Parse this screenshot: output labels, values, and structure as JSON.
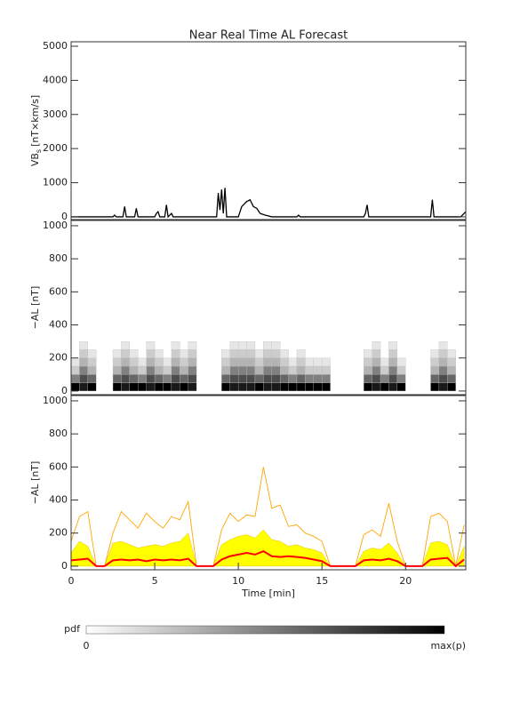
{
  "chart_data": [
    {
      "type": "line",
      "title": "Near Real Time AL Forecast",
      "ylabel": "VB",
      "ylabel_sub": "s",
      "ylabel_unit": "[nT×km/s]",
      "xlim": [
        0,
        23.6
      ],
      "ylim": [
        -80,
        5130
      ],
      "yticks": [
        0,
        1000,
        2000,
        3000,
        4000,
        5000
      ],
      "series": [
        {
          "color": "#000000",
          "x": [
            0,
            2.5,
            2.6,
            2.7,
            3.1,
            3.2,
            3.3,
            3.8,
            3.9,
            4.0,
            5.0,
            5.1,
            5.2,
            5.3,
            5.6,
            5.7,
            5.8,
            6.0,
            6.1,
            6.2,
            8.7,
            8.8,
            8.9,
            9.0,
            9.1,
            9.2,
            9.3,
            10.0,
            10.2,
            10.5,
            10.7,
            10.9,
            11.1,
            11.3,
            11.6,
            12.0,
            13.5,
            13.6,
            13.7,
            17.5,
            17.6,
            17.7,
            17.8,
            21.5,
            21.6,
            21.7,
            23.3,
            23.5,
            23.6
          ],
          "values": [
            0,
            0,
            50,
            0,
            0,
            300,
            0,
            0,
            250,
            0,
            0,
            100,
            150,
            0,
            0,
            350,
            0,
            100,
            0,
            0,
            0,
            700,
            200,
            800,
            100,
            850,
            0,
            0,
            300,
            450,
            500,
            300,
            250,
            100,
            50,
            0,
            0,
            50,
            0,
            0,
            100,
            350,
            0,
            0,
            500,
            0,
            0,
            100,
            150
          ]
        }
      ]
    },
    {
      "type": "heatmap",
      "ylabel": "−AL [nT]",
      "xlim": [
        0,
        23.6
      ],
      "ylim": [
        -22,
        1032
      ],
      "yticks": [
        0,
        200,
        400,
        600,
        800,
        1000
      ],
      "xbins": [
        0,
        0.5,
        1,
        1.5,
        2,
        2.5,
        3,
        3.5,
        4,
        4.5,
        5,
        5.5,
        6,
        6.5,
        7,
        7.5,
        8,
        8.5,
        9,
        9.5,
        10,
        10.5,
        11,
        11.5,
        12,
        12.5,
        13,
        13.5,
        14,
        14.5,
        15,
        15.5,
        16,
        16.5,
        17,
        17.5,
        18,
        18.5,
        19,
        19.5,
        20,
        20.5,
        21,
        21.5,
        22,
        22.5,
        23,
        23.5
      ],
      "ybins": [
        0,
        50,
        100,
        150,
        200,
        250,
        300
      ],
      "pdf": [
        [
          1,
          0.5,
          0.2,
          0.1,
          0,
          0
        ],
        [
          0.9,
          0.7,
          0.5,
          0.3,
          0.2,
          0.1
        ],
        [
          1,
          0.6,
          0.3,
          0.2,
          0.1,
          0
        ],
        [
          0,
          0,
          0,
          0,
          0,
          0
        ],
        [
          0,
          0,
          0,
          0,
          0,
          0
        ],
        [
          1,
          0.6,
          0.3,
          0.2,
          0.1,
          0
        ],
        [
          0.9,
          0.7,
          0.5,
          0.3,
          0.2,
          0.1
        ],
        [
          1,
          0.6,
          0.3,
          0.2,
          0.1,
          0
        ],
        [
          1,
          0.5,
          0.2,
          0.1,
          0,
          0
        ],
        [
          0.9,
          0.7,
          0.5,
          0.3,
          0.2,
          0.1
        ],
        [
          1,
          0.6,
          0.3,
          0.2,
          0.1,
          0
        ],
        [
          1,
          0.5,
          0.2,
          0.1,
          0,
          0
        ],
        [
          0.9,
          0.7,
          0.5,
          0.3,
          0.2,
          0.1
        ],
        [
          1,
          0.6,
          0.3,
          0.2,
          0.1,
          0
        ],
        [
          0.9,
          0.7,
          0.5,
          0.3,
          0.2,
          0.1
        ],
        [
          0,
          0,
          0,
          0,
          0,
          0
        ],
        [
          0,
          0,
          0,
          0,
          0,
          0
        ],
        [
          0,
          0,
          0,
          0,
          0,
          0
        ],
        [
          1,
          0.6,
          0.3,
          0.2,
          0.1,
          0
        ],
        [
          0.9,
          0.7,
          0.5,
          0.3,
          0.2,
          0.1
        ],
        [
          0.9,
          0.7,
          0.5,
          0.3,
          0.2,
          0.1
        ],
        [
          0.9,
          0.7,
          0.5,
          0.3,
          0.2,
          0.1
        ],
        [
          1,
          0.6,
          0.3,
          0.2,
          0.1,
          0
        ],
        [
          0.9,
          0.7,
          0.5,
          0.3,
          0.2,
          0.1
        ],
        [
          0.9,
          0.7,
          0.5,
          0.3,
          0.2,
          0.1
        ],
        [
          1,
          0.6,
          0.3,
          0.2,
          0.1,
          0
        ],
        [
          1,
          0.5,
          0.2,
          0.1,
          0,
          0
        ],
        [
          1,
          0.6,
          0.3,
          0.2,
          0.1,
          0
        ],
        [
          1,
          0.5,
          0.2,
          0.1,
          0,
          0
        ],
        [
          1,
          0.5,
          0.2,
          0.1,
          0,
          0
        ],
        [
          1,
          0.5,
          0.2,
          0.1,
          0,
          0
        ],
        [
          0,
          0,
          0,
          0,
          0,
          0
        ],
        [
          0,
          0,
          0,
          0,
          0,
          0
        ],
        [
          0,
          0,
          0,
          0,
          0,
          0
        ],
        [
          0,
          0,
          0,
          0,
          0,
          0
        ],
        [
          1,
          0.6,
          0.3,
          0.2,
          0.1,
          0
        ],
        [
          0.9,
          0.7,
          0.5,
          0.3,
          0.2,
          0.1
        ],
        [
          1,
          0.5,
          0.2,
          0.1,
          0,
          0
        ],
        [
          0.9,
          0.7,
          0.5,
          0.3,
          0.2,
          0.1
        ],
        [
          1,
          0.5,
          0.2,
          0.1,
          0,
          0
        ],
        [
          0,
          0,
          0,
          0,
          0,
          0
        ],
        [
          0,
          0,
          0,
          0,
          0,
          0
        ],
        [
          0,
          0,
          0,
          0,
          0,
          0
        ],
        [
          1,
          0.6,
          0.3,
          0.2,
          0.1,
          0
        ],
        [
          0.9,
          0.7,
          0.5,
          0.3,
          0.2,
          0.1
        ],
        [
          1,
          0.6,
          0.3,
          0.2,
          0.1,
          0
        ],
        [
          0,
          0,
          0,
          0,
          0,
          0
        ]
      ],
      "colorbar": {
        "label": "pdf",
        "min_label": "0",
        "max_label": "max(p)"
      }
    },
    {
      "type": "line",
      "ylabel": "−AL [nT]",
      "xlabel": "Time [min]",
      "xlim": [
        0,
        23.6
      ],
      "ylim": [
        -22,
        1032
      ],
      "yticks": [
        0,
        200,
        400,
        600,
        800,
        1000
      ],
      "xticks": [
        0,
        5,
        10,
        15,
        20
      ],
      "series": [
        {
          "color": "#ffff00",
          "fill": true,
          "x": [
            0,
            0.5,
            1,
            1.5,
            2,
            2.5,
            3,
            3.5,
            4,
            4.5,
            5,
            5.5,
            6,
            6.5,
            7,
            7.5,
            8,
            8.5,
            9,
            9.5,
            10,
            10.5,
            11,
            11.5,
            12,
            12.5,
            13,
            13.5,
            14,
            14.5,
            15,
            15.5,
            16,
            16.5,
            17,
            17.5,
            18,
            18.5,
            19,
            19.5,
            20,
            20.5,
            21,
            21.5,
            22,
            22.5,
            23,
            23.5
          ],
          "values": [
            80,
            150,
            120,
            0,
            0,
            140,
            150,
            130,
            110,
            120,
            130,
            120,
            140,
            150,
            200,
            0,
            0,
            0,
            130,
            160,
            180,
            190,
            170,
            220,
            160,
            150,
            120,
            130,
            110,
            100,
            80,
            0,
            0,
            0,
            0,
            90,
            110,
            100,
            140,
            80,
            0,
            0,
            0,
            140,
            150,
            130,
            0,
            120
          ]
        },
        {
          "color": "#ffa500",
          "x": [
            0,
            0.5,
            1,
            1.5,
            2,
            2.5,
            3,
            3.5,
            4,
            4.5,
            5,
            5.5,
            6,
            6.5,
            7,
            7.5,
            8,
            8.5,
            9,
            9.5,
            10,
            10.5,
            11,
            11.5,
            12,
            12.5,
            13,
            13.5,
            14,
            14.5,
            15,
            15.5,
            16,
            16.5,
            17,
            17.5,
            18,
            18.5,
            19,
            19.5,
            20,
            20.5,
            21,
            21.5,
            22,
            22.5,
            23,
            23.5
          ],
          "values": [
            150,
            300,
            330,
            0,
            0,
            200,
            330,
            280,
            230,
            320,
            270,
            230,
            300,
            280,
            390,
            0,
            0,
            0,
            220,
            320,
            270,
            310,
            300,
            600,
            350,
            370,
            240,
            250,
            200,
            180,
            150,
            0,
            0,
            0,
            0,
            190,
            220,
            180,
            380,
            150,
            0,
            0,
            0,
            300,
            320,
            270,
            0,
            250
          ]
        },
        {
          "color": "#ff0000",
          "x": [
            0,
            0.5,
            1,
            1.5,
            2,
            2.5,
            3,
            3.5,
            4,
            4.5,
            5,
            5.5,
            6,
            6.5,
            7,
            7.5,
            8,
            8.5,
            9,
            9.5,
            10,
            10.5,
            11,
            11.5,
            12,
            12.5,
            13,
            13.5,
            14,
            14.5,
            15,
            15.5,
            16,
            16.5,
            17,
            17.5,
            18,
            18.5,
            19,
            19.5,
            20,
            20.5,
            21,
            21.5,
            22,
            22.5,
            23,
            23.5
          ],
          "values": [
            35,
            40,
            45,
            0,
            0,
            35,
            40,
            35,
            40,
            30,
            40,
            35,
            40,
            35,
            45,
            0,
            0,
            0,
            40,
            60,
            70,
            80,
            70,
            90,
            60,
            55,
            60,
            55,
            50,
            40,
            30,
            0,
            0,
            0,
            0,
            35,
            40,
            35,
            45,
            30,
            0,
            0,
            0,
            40,
            45,
            50,
            0,
            40
          ]
        }
      ]
    }
  ]
}
